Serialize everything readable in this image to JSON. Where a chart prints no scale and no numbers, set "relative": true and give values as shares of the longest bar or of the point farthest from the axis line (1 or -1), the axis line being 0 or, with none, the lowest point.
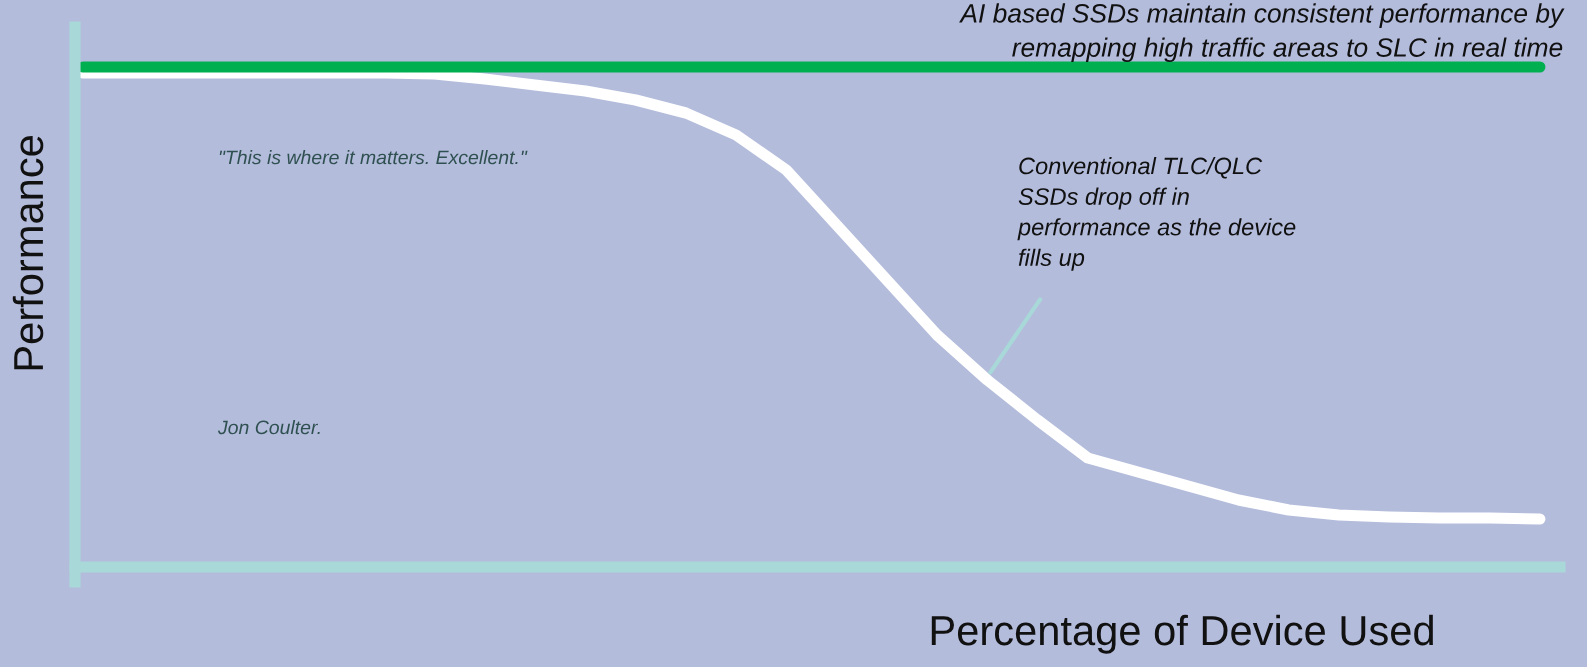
{
  "chart_data": {
    "type": "line",
    "relative": true,
    "xlabel": "Percentage of Device Used",
    "ylabel": "Performance",
    "categories": [
      null,
      null,
      null,
      null,
      null,
      null,
      null,
      null,
      null,
      null,
      null,
      null,
      null,
      null,
      null,
      null,
      null,
      null,
      null,
      null,
      null,
      null,
      null,
      null,
      null,
      null,
      null,
      null,
      null,
      null
    ],
    "series": [
      {
        "color": "#ffffff",
        "values": [
          0.988,
          0.988,
          0.988,
          0.988,
          0.988,
          0.988,
          0.988,
          0.986,
          0.976,
          0.964,
          0.952,
          0.934,
          0.908,
          0.864,
          0.794,
          0.684,
          0.574,
          0.464,
          0.374,
          0.294,
          0.218,
          0.19,
          0.162,
          0.134,
          0.114,
          0.104,
          0.1,
          0.098,
          0.098,
          0.096
        ]
      },
      {
        "color": "#00b050",
        "values": [
          1.0,
          1.0,
          1.0,
          1.0,
          1.0,
          1.0,
          1.0,
          1.0,
          1.0,
          1.0,
          1.0,
          1.0,
          1.0,
          1.0,
          1.0,
          1.0,
          1.0,
          1.0,
          1.0,
          1.0,
          1.0,
          1.0,
          1.0,
          1.0,
          1.0,
          1.0,
          1.0,
          1.0,
          1.0,
          1.0
        ]
      }
    ],
    "annotations": [
      "AI based SSDs maintain consistent performance by\nremapping high traffic areas to SLC in real time",
      "\"This is where it matters. Excellent.\"",
      "Jon Coulter.",
      "Conventional TLC/QLC\nSSDs drop off in\nperformance as the device\nfills up"
    ],
    "grid": false
  }
}
